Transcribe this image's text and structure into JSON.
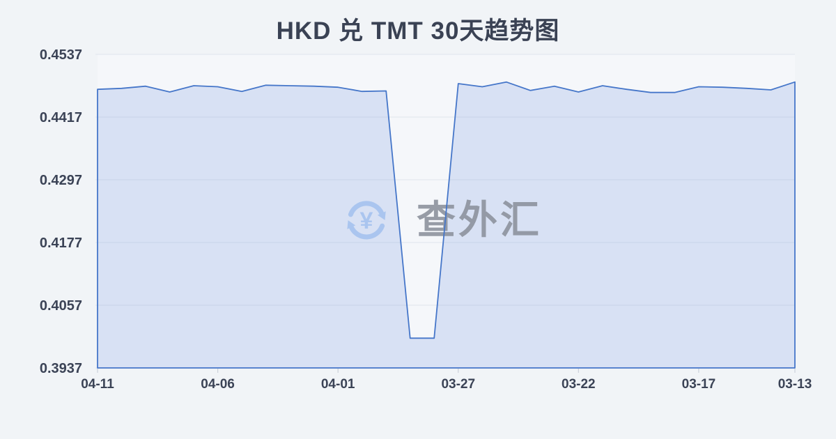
{
  "title": "HKD 兑 TMT 30天趋势图",
  "watermark": {
    "icon": "currency-exchange-refresh-icon",
    "currency_symbol": "¥",
    "text": "查外汇",
    "icon_color": "#a6c3ef",
    "text_color": "#8d939e"
  },
  "colors": {
    "page_background": "#f1f4f7",
    "plot_background": "#f5f7fa",
    "title_text": "#3a4254",
    "axis_text": "#3b4356",
    "line": "#4576c9",
    "area_fill": "rgba(86,130,214,0.18)",
    "gridline": "#e4e8ef",
    "tick": "#ccd1da"
  },
  "chart_data": {
    "type": "area",
    "title": "HKD 兑 TMT 30天趋势图",
    "x": [
      "04-11",
      "04-10",
      "04-09",
      "04-08",
      "04-07",
      "04-06",
      "04-05",
      "04-04",
      "04-03",
      "04-02",
      "04-01",
      "03-31",
      "03-30",
      "03-29",
      "03-28",
      "03-27",
      "03-26",
      "03-25",
      "03-24",
      "03-23",
      "03-22",
      "03-21",
      "03-20",
      "03-19",
      "03-18",
      "03-17",
      "03-16",
      "03-15",
      "03-14",
      "03-13"
    ],
    "values": [
      0.447,
      0.4472,
      0.4476,
      0.4465,
      0.4477,
      0.4475,
      0.4466,
      0.4478,
      0.4477,
      0.4476,
      0.4474,
      0.4466,
      0.4467,
      0.3994,
      0.3994,
      0.4481,
      0.4475,
      0.4484,
      0.4468,
      0.4476,
      0.4465,
      0.4477,
      0.447,
      0.4464,
      0.4464,
      0.4475,
      0.4474,
      0.4472,
      0.4469,
      0.4484
    ],
    "y_ticks": [
      0.4537,
      0.4417,
      0.4297,
      0.4177,
      0.4057,
      0.3937
    ],
    "ylim": [
      0.3937,
      0.4537
    ],
    "x_tick_indices": [
      0,
      5,
      10,
      15,
      20,
      25,
      29
    ],
    "x_tick_labels": [
      "04-11",
      "04-06",
      "04-01",
      "03-27",
      "03-22",
      "03-17",
      "03-13"
    ],
    "grid": true,
    "legend_position": "none",
    "x_axis_direction": "dates-descending-left-to-right"
  }
}
